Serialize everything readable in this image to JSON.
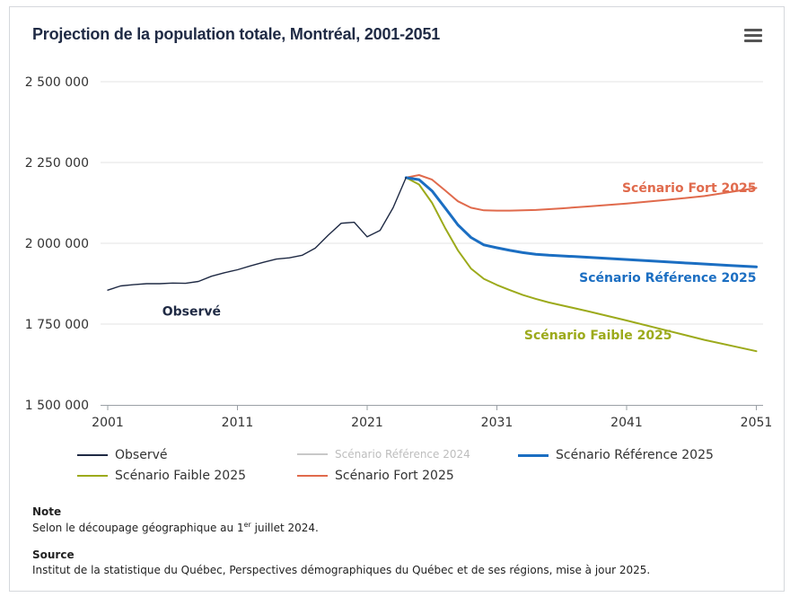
{
  "title": "Projection de la population totale, Montréal, 2001-2051",
  "menu_icon": "hamburger-menu-icon",
  "chart_data": {
    "type": "line",
    "title": "Projection de la population totale, Montréal, 2001-2051",
    "xlim": [
      2001,
      2052
    ],
    "ylim": [
      1500000,
      2500000
    ],
    "x_ticks": [
      "2001",
      "2011",
      "2021",
      "2031",
      "2041",
      "2051"
    ],
    "y_ticks": [
      "1 500 000",
      "1 750 000",
      "2 000 000",
      "2 250 000",
      "2 500 000"
    ],
    "grid": true,
    "series": [
      {
        "name": "Observé",
        "color": "#1f2a44",
        "x": [
          2001,
          2002,
          2003,
          2004,
          2005,
          2006,
          2007,
          2008,
          2009,
          2010,
          2011,
          2012,
          2013,
          2014,
          2015,
          2016,
          2017,
          2018,
          2019,
          2020,
          2021,
          2022,
          2023,
          2024
        ],
        "y": [
          1855000,
          1868000,
          1872000,
          1875000,
          1875000,
          1877000,
          1876000,
          1882000,
          1898000,
          1909000,
          1918000,
          1930000,
          1941000,
          1951000,
          1955000,
          1963000,
          1985000,
          2025000,
          2062000,
          2065000,
          2020000,
          2040000,
          2110000,
          2203000
        ]
      },
      {
        "name": "Scénario Référence 2024",
        "color": "#c8c8c8",
        "x": [],
        "y": []
      },
      {
        "name": "Scénario Référence 2025",
        "color": "#1b6ec2",
        "x": [
          2024,
          2025,
          2026,
          2027,
          2028,
          2029,
          2030,
          2031,
          2032,
          2033,
          2034,
          2035,
          2037,
          2040,
          2043,
          2046,
          2049,
          2051
        ],
        "y": [
          2203000,
          2197000,
          2162000,
          2110000,
          2057000,
          2018000,
          1995000,
          1986000,
          1978000,
          1971000,
          1966000,
          1963000,
          1959000,
          1952000,
          1945000,
          1938000,
          1931000,
          1927000
        ]
      },
      {
        "name": "Scénario Faible 2025",
        "color": "#9caa1b",
        "x": [
          2024,
          2025,
          2026,
          2027,
          2028,
          2029,
          2030,
          2031,
          2032,
          2033,
          2034,
          2035,
          2038,
          2041,
          2044,
          2047,
          2051
        ],
        "y": [
          2203000,
          2182000,
          2125000,
          2048000,
          1978000,
          1922000,
          1890000,
          1871000,
          1855000,
          1840000,
          1828000,
          1817000,
          1790000,
          1761000,
          1731000,
          1701000,
          1666000
        ]
      },
      {
        "name": "Scénario Fort 2025",
        "color": "#e06a4c",
        "x": [
          2024,
          2025,
          2026,
          2027,
          2028,
          2029,
          2030,
          2031,
          2032,
          2033,
          2034,
          2036,
          2038,
          2041,
          2044,
          2047,
          2051
        ],
        "y": [
          2203000,
          2211000,
          2197000,
          2164000,
          2130000,
          2110000,
          2102000,
          2101000,
          2101000,
          2102000,
          2103000,
          2108000,
          2114000,
          2123000,
          2134000,
          2146000,
          2171000
        ]
      }
    ],
    "annotations": [
      {
        "text": "Observé",
        "color": "#1f2a44",
        "x": 2005.2,
        "y": 1790000
      },
      {
        "text": "Scénario Fort 2025",
        "color": "#e06a4c",
        "x": 2051,
        "y": 2172000
      },
      {
        "text": "Scénario Référence 2025",
        "color": "#1b6ec2",
        "x": 2051,
        "y": 1895000
      },
      {
        "text": "Scénario Faible 2025",
        "color": "#9caa1b",
        "x": 2044.5,
        "y": 1717000
      }
    ]
  },
  "legend": [
    {
      "label": "Observé",
      "color": "#1f2a44",
      "width": 1.5,
      "dim": false
    },
    {
      "label": "Scénario Référence 2024",
      "color": "#c8c8c8",
      "width": 1.5,
      "dim": true
    },
    {
      "label": "Scénario Référence 2025",
      "color": "#1b6ec2",
      "width": 3,
      "dim": false
    },
    {
      "label": "Scénario Faible 2025",
      "color": "#9caa1b",
      "width": 2,
      "dim": false
    },
    {
      "label": "Scénario Fort 2025",
      "color": "#e06a4c",
      "width": 2,
      "dim": false
    }
  ],
  "note": {
    "title": "Note",
    "text_before": "Selon le découpage géographique au 1",
    "text_sup": "er",
    "text_after": " juillet 2024."
  },
  "source": {
    "title": "Source",
    "text": "Institut de la statistique du Québec, Perspectives démographiques du Québec et de ses régions, mise à jour 2025."
  }
}
